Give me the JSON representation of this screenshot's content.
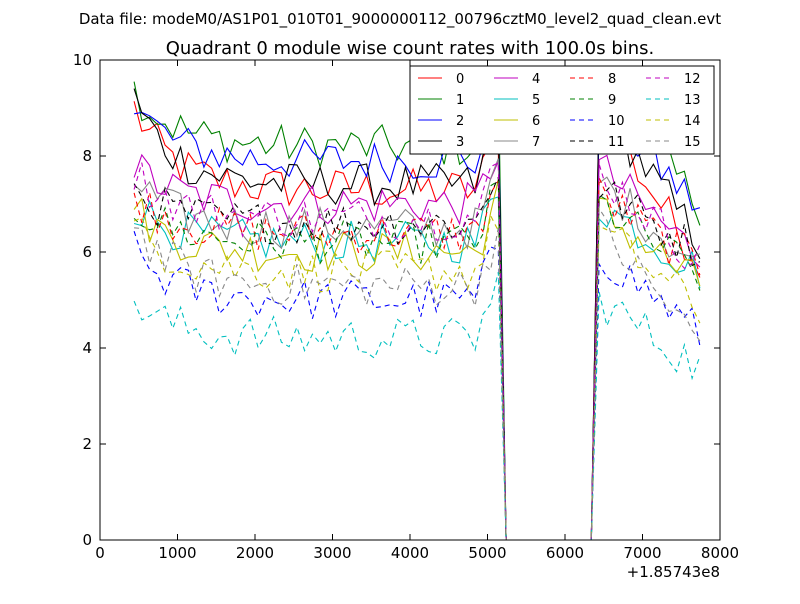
{
  "header": "Data file: modeM0/AS1P01_010T01_9000000112_00796cztM0_level2_quad_clean.evt",
  "chart_data": {
    "type": "line",
    "title": "Quadrant 0 module wise count rates with 100.0s bins.",
    "xlabel": "",
    "ylabel": "",
    "xlim": [
      0,
      8000
    ],
    "ylim": [
      0,
      10
    ],
    "x_offset_label": "+1.85743e8",
    "xticks": [
      0,
      1000,
      2000,
      3000,
      4000,
      5000,
      6000,
      7000,
      8000
    ],
    "yticks": [
      0,
      2,
      4,
      6,
      8,
      10
    ],
    "legend_position": "top-right",
    "legend_columns": 4,
    "gap": {
      "start": 5250,
      "end": 6350
    },
    "x": {
      "start": 440,
      "step": 100,
      "end": 7740
    },
    "series": [
      {
        "name": "0",
        "color": "#ff0000",
        "dash": "solid",
        "start": 9.0,
        "level": 7.3,
        "end": 5.8
      },
      {
        "name": "1",
        "color": "#008000",
        "dash": "solid",
        "start": 9.4,
        "level": 8.2,
        "end": 7.0
      },
      {
        "name": "2",
        "color": "#0000ff",
        "dash": "solid",
        "start": 9.1,
        "level": 7.9,
        "end": 6.9
      },
      {
        "name": "3",
        "color": "#000000",
        "dash": "solid",
        "start": 9.2,
        "level": 7.4,
        "end": 6.2
      },
      {
        "name": "4",
        "color": "#bf00bf",
        "dash": "solid",
        "start": 7.8,
        "level": 7.0,
        "end": 5.9
      },
      {
        "name": "5",
        "color": "#00bfbf",
        "dash": "solid",
        "start": 7.0,
        "level": 6.2,
        "end": 5.6
      },
      {
        "name": "6",
        "color": "#bfbf00",
        "dash": "solid",
        "start": 6.9,
        "level": 6.0,
        "end": 5.3
      },
      {
        "name": "7",
        "color": "#888888",
        "dash": "solid",
        "start": 7.5,
        "level": 6.5,
        "end": 5.7
      },
      {
        "name": "8",
        "color": "#ff0000",
        "dash": "dashed",
        "start": 7.2,
        "level": 6.4,
        "end": 5.7
      },
      {
        "name": "9",
        "color": "#008000",
        "dash": "dashed",
        "start": 7.0,
        "level": 6.2,
        "end": 5.5
      },
      {
        "name": "10",
        "color": "#0000ff",
        "dash": "dashed",
        "start": 6.0,
        "level": 5.0,
        "end": 4.3
      },
      {
        "name": "11",
        "color": "#000000",
        "dash": "dashed",
        "start": 7.3,
        "level": 6.6,
        "end": 6.0
      },
      {
        "name": "12",
        "color": "#bf00bf",
        "dash": "dashed",
        "start": 7.7,
        "level": 6.7,
        "end": 5.8
      },
      {
        "name": "13",
        "color": "#00bfbf",
        "dash": "dashed",
        "start": 5.0,
        "level": 4.2,
        "end": 3.6
      },
      {
        "name": "14",
        "color": "#bfbf00",
        "dash": "dashed",
        "start": 6.5,
        "level": 5.6,
        "end": 4.8
      },
      {
        "name": "15",
        "color": "#888888",
        "dash": "dashed",
        "start": 6.6,
        "level": 5.3,
        "end": 4.1
      }
    ]
  }
}
